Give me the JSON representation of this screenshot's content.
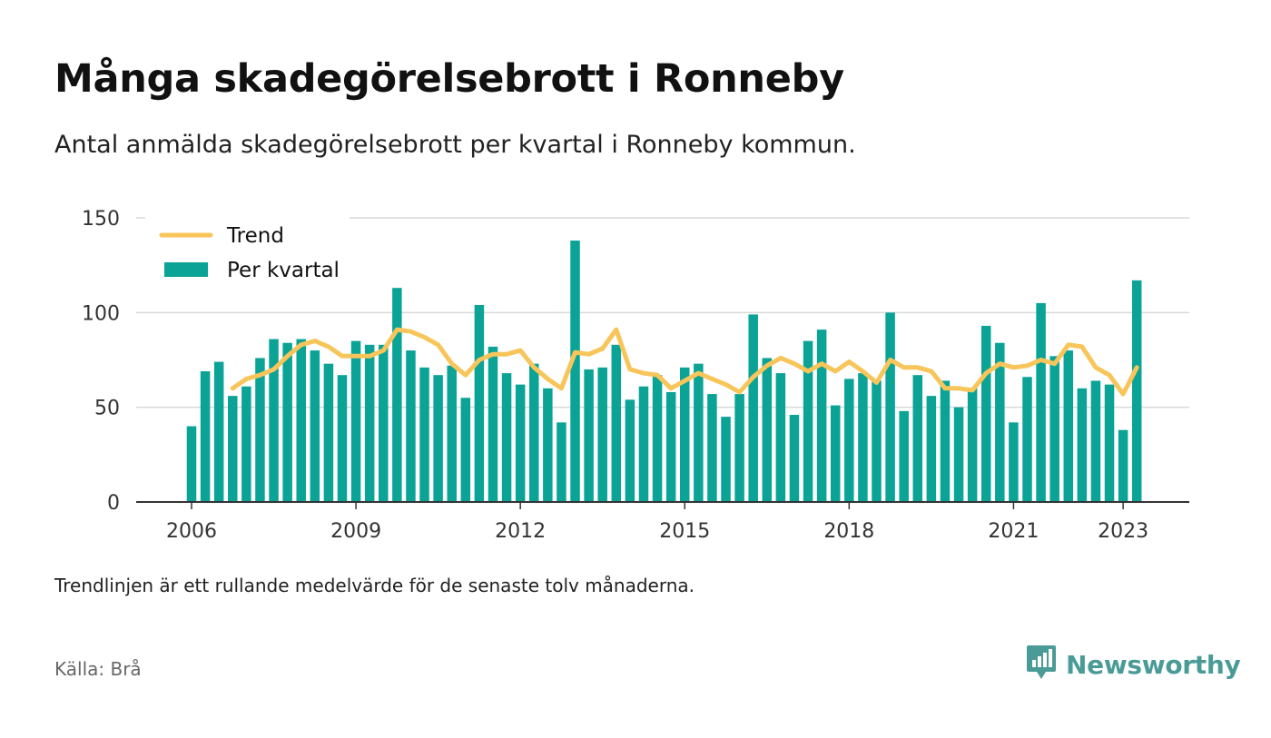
{
  "header": {
    "title": "Många skadegörelsebrott i Ronneby",
    "subtitle": "Antal anmälda skadegörelsebrott per kvartal i Ronneby kommun."
  },
  "footer": {
    "note": "Trendlinjen är ett rullande medelvärde för de senaste tolv månaderna.",
    "source": "Källa: Brå",
    "brand": "Newsworthy"
  },
  "colors": {
    "bars": "#0aa396",
    "trend": "#f8c55a",
    "grid": "#d9d9d9",
    "baseline": "#333333",
    "brand": "#4a9b97"
  },
  "icons": {
    "brand_logo": "newsworthy-logo-icon"
  },
  "chart_data": {
    "type": "bar",
    "x_unit": "quarter",
    "x": [
      "2006Q1",
      "2006Q2",
      "2006Q3",
      "2006Q4",
      "2007Q1",
      "2007Q2",
      "2007Q3",
      "2007Q4",
      "2008Q1",
      "2008Q2",
      "2008Q3",
      "2008Q4",
      "2009Q1",
      "2009Q2",
      "2009Q3",
      "2009Q4",
      "2010Q1",
      "2010Q2",
      "2010Q3",
      "2010Q4",
      "2011Q1",
      "2011Q2",
      "2011Q3",
      "2011Q4",
      "2012Q1",
      "2012Q2",
      "2012Q3",
      "2012Q4",
      "2013Q1",
      "2013Q2",
      "2013Q3",
      "2013Q4",
      "2014Q1",
      "2014Q2",
      "2014Q3",
      "2014Q4",
      "2015Q1",
      "2015Q2",
      "2015Q3",
      "2015Q4",
      "2016Q1",
      "2016Q2",
      "2016Q3",
      "2016Q4",
      "2017Q1",
      "2017Q2",
      "2017Q3",
      "2017Q4",
      "2018Q1",
      "2018Q2",
      "2018Q3",
      "2018Q4",
      "2019Q1",
      "2019Q2",
      "2019Q3",
      "2019Q4",
      "2020Q1",
      "2020Q2",
      "2020Q3",
      "2020Q4",
      "2021Q1",
      "2021Q2",
      "2021Q3",
      "2021Q4",
      "2022Q1",
      "2022Q2",
      "2022Q3",
      "2022Q4",
      "2023Q1",
      "2023Q2"
    ],
    "series": [
      {
        "name": "Per kvartal",
        "type": "bar",
        "values": [
          40,
          69,
          74,
          56,
          61,
          76,
          86,
          84,
          86,
          80,
          73,
          67,
          85,
          83,
          83,
          113,
          80,
          71,
          67,
          72,
          55,
          104,
          82,
          68,
          62,
          73,
          60,
          42,
          138,
          70,
          71,
          83,
          54,
          61,
          67,
          58,
          71,
          73,
          57,
          45,
          57,
          99,
          76,
          68,
          46,
          85,
          91,
          51,
          65,
          68,
          64,
          100,
          48,
          67,
          56,
          64,
          50,
          60,
          93,
          84,
          42,
          66,
          105,
          77,
          80,
          60,
          64,
          62,
          38,
          117
        ]
      },
      {
        "name": "Trend",
        "type": "line",
        "values": [
          null,
          null,
          null,
          60,
          65,
          67,
          70,
          77,
          83,
          85,
          82,
          77,
          77,
          77,
          80,
          91,
          90,
          87,
          83,
          73,
          67,
          75,
          78,
          78,
          80,
          71,
          65,
          60,
          79,
          78,
          81,
          91,
          70,
          68,
          67,
          60,
          64,
          68,
          65,
          62,
          58,
          66,
          72,
          76,
          73,
          69,
          73,
          69,
          74,
          69,
          63,
          75,
          71,
          71,
          69,
          60,
          60,
          59,
          68,
          73,
          71,
          72,
          75,
          73,
          83,
          82,
          71,
          67,
          57,
          71
        ]
      }
    ],
    "x_ticks": [
      "2006",
      "2009",
      "2012",
      "2015",
      "2018",
      "2021",
      "2023"
    ],
    "y_ticks": [
      0,
      50,
      100,
      150
    ],
    "ylim": [
      0,
      150
    ],
    "grid": true,
    "legend": {
      "placement": "top-left",
      "entries": [
        "Trend",
        "Per kvartal"
      ]
    }
  }
}
